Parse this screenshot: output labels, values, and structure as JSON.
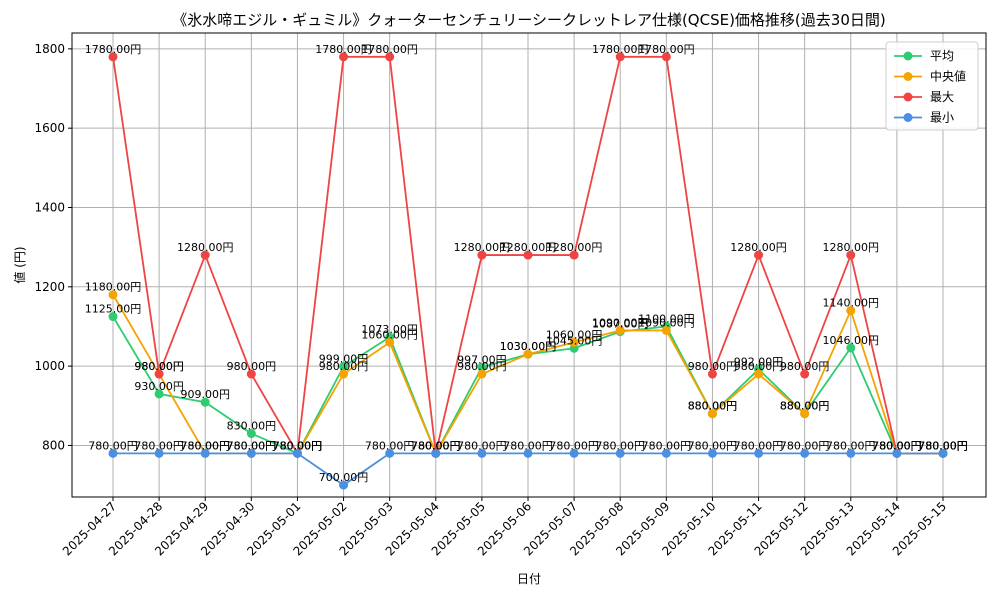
{
  "chart_data": {
    "type": "line",
    "title": "《氷水啼エジル・ギュミル》クォーターセンチュリーシークレットレア仕様(QCSE)価格推移(過去30日間)",
    "xlabel": "日付",
    "ylabel": "値 (円)",
    "ylim": [
      670,
      1840
    ],
    "yticks": [
      800,
      1000,
      1200,
      1400,
      1600,
      1800
    ],
    "grid": true,
    "legend_position": "top-right",
    "categories": [
      "2025-04-27",
      "2025-04-28",
      "2025-04-29",
      "2025-04-30",
      "2025-05-01",
      "2025-05-02",
      "2025-05-03",
      "2025-05-04",
      "2025-05-05",
      "2025-05-06",
      "2025-05-07",
      "2025-05-08",
      "2025-05-09",
      "2025-05-10",
      "2025-05-11",
      "2025-05-12",
      "2025-05-13",
      "2025-05-14",
      "2025-05-15"
    ],
    "series": [
      {
        "name": "平均",
        "color": "#2ecc71",
        "values": [
          1125,
          930,
          909,
          830,
          780,
          999,
          1073,
          780,
          997,
          1030,
          1045,
          1087,
          1100,
          880,
          992,
          880,
          1046,
          780,
          780
        ]
      },
      {
        "name": "中央値",
        "color": "#f5a300",
        "values": [
          1180,
          980,
          780,
          780,
          780,
          980,
          1060,
          780,
          980,
          1030,
          1060,
          1090,
          1090,
          880,
          980,
          880,
          1140,
          780,
          780
        ]
      },
      {
        "name": "最大",
        "color": "#ef4444",
        "values": [
          1780,
          980,
          1280,
          980,
          780,
          1780,
          1780,
          780,
          1280,
          1280,
          1280,
          1780,
          1780,
          980,
          1280,
          980,
          1280,
          780,
          780
        ]
      },
      {
        "name": "最小",
        "color": "#4a90e2",
        "values": [
          780,
          780,
          780,
          780,
          780,
          700,
          780,
          780,
          780,
          780,
          780,
          780,
          780,
          780,
          780,
          780,
          780,
          780,
          780
        ]
      }
    ],
    "label_suffix": "円"
  }
}
